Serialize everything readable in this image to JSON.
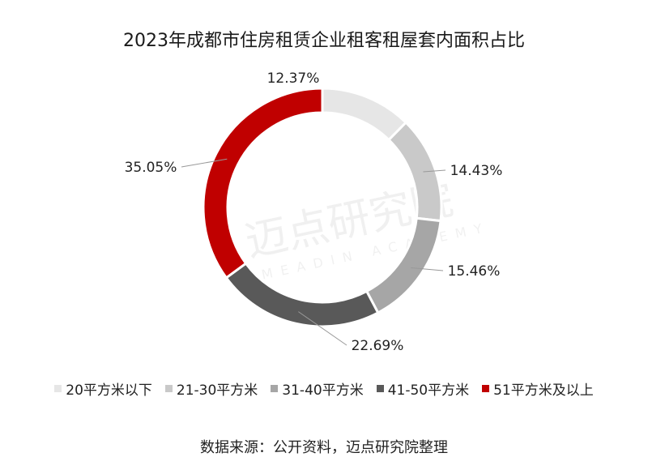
{
  "chart_data": {
    "type": "pie",
    "donut": true,
    "title": "2023年成都市住房租赁企业租客租屋套内面积占比",
    "categories": [
      "20平方米以下",
      "21-30平方米",
      "31-40平方米",
      "41-50平方米",
      "51平方米及以上"
    ],
    "values": [
      12.37,
      14.43,
      15.46,
      22.69,
      35.05
    ],
    "data_labels": [
      "12.37%",
      "14.43%",
      "15.46%",
      "22.69%",
      "35.05%"
    ],
    "colors": [
      "#e6e6e6",
      "#c9c9c9",
      "#a6a6a6",
      "#595959",
      "#c00000"
    ],
    "legend_position": "bottom"
  },
  "source": "数据来源：公开资料，迈点研究院整理",
  "watermark": {
    "text": "迈点研究院",
    "subtext": "MEADIN ACADEMY"
  }
}
